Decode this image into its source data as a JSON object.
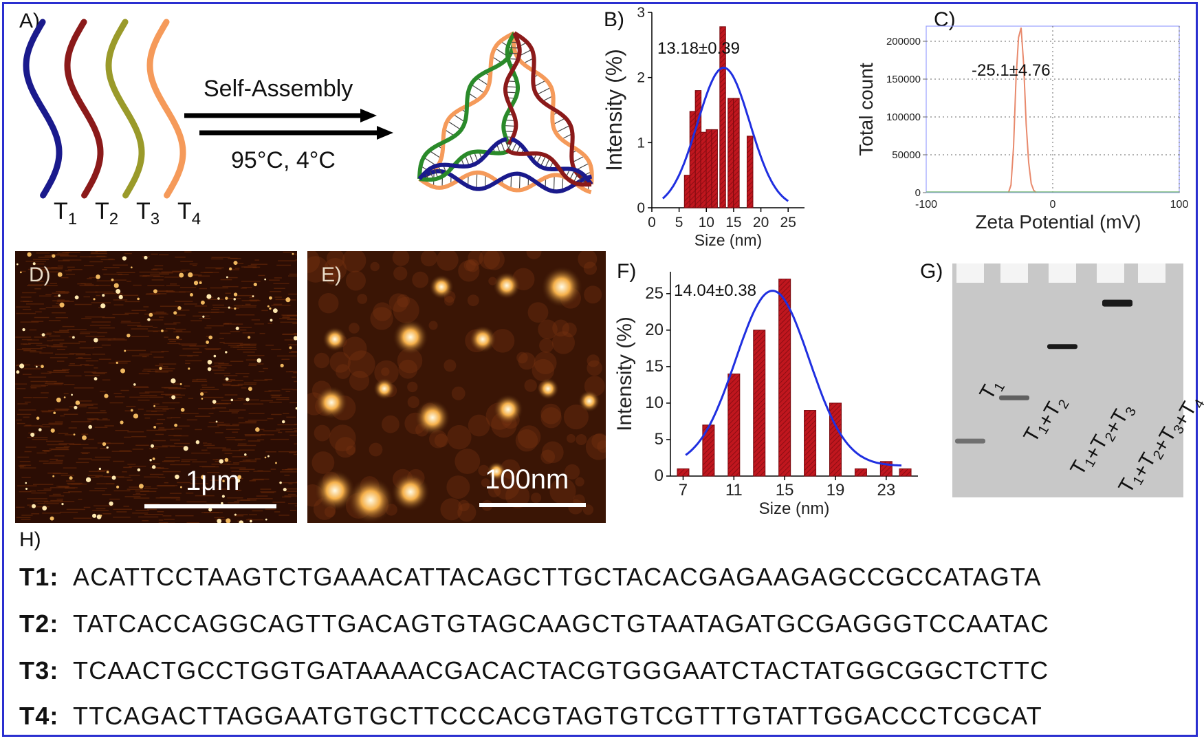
{
  "panels": {
    "A": {
      "label": "A)",
      "strands": [
        "T1",
        "T2",
        "T3",
        "T4"
      ],
      "strand_colors": [
        "#1a1a8c",
        "#8b1a1a",
        "#9a9a2a",
        "#f59a5a"
      ],
      "arrow_top_text": "Self-Assembly",
      "arrow_bottom_text": "95°C, 4°C"
    },
    "B": {
      "label": "B)",
      "annotation": "13.18±0.39"
    },
    "C": {
      "label": "C)",
      "annotation": "-25.1±4.76"
    },
    "D": {
      "label": "D)",
      "scale_bar": "1μm"
    },
    "E": {
      "label": "E)",
      "scale_bar": "100nm"
    },
    "F": {
      "label": "F)",
      "annotation": "14.04±0.38"
    },
    "G": {
      "label": "G)",
      "lanes": [
        "T1",
        "T1+T2",
        "T1+T2+T3",
        "T1+T2+T3+T4"
      ],
      "band_rel_positions": [
        0.31,
        0.48,
        0.67,
        0.86
      ]
    },
    "H": {
      "label": "H)",
      "sequences": [
        {
          "name": "T1:",
          "seq": "ACATTCCTAAGTCTGAAACATTACAGCTTGCTACACGAGAAGAGCCGCCATAGTA"
        },
        {
          "name": "T2:",
          "seq": "TATCACCAGGCAGTTGACAGTGTAGCAAGCTGTAATAGATGCGAGGGTCCAATAC"
        },
        {
          "name": "T3:",
          "seq": "TCAACTGCCTGGTGATAAAACGACACTACGTGGGAATCTACTATGGCGGCTCTTC"
        },
        {
          "name": "T4:",
          "seq": "TTCAGACTTAGGAATGTGCTTCCCACGTAGTGTCGTTTGTATTGGACCCTCGCAT"
        }
      ]
    }
  },
  "chart_data": [
    {
      "id": "B",
      "type": "bar",
      "x": [
        6.5,
        7.5,
        8.5,
        9.5,
        10.5,
        11.5,
        13,
        14.5,
        15.5,
        18
      ],
      "values": [
        0.5,
        1.48,
        1.8,
        1.16,
        1.2,
        1.2,
        2.78,
        1.68,
        1.68,
        1.1
      ],
      "fit": {
        "type": "gaussian",
        "mean": 13.18,
        "sigma": 4.8,
        "amplitude": 2.15
      },
      "xlabel": "Size (nm)",
      "ylabel": "Intensity (%)",
      "xlim": [
        0,
        28
      ],
      "ylim": [
        0,
        3
      ],
      "xticks": [
        0,
        5,
        10,
        15,
        20,
        25
      ],
      "yticks": [
        0,
        1,
        2,
        3
      ]
    },
    {
      "id": "C",
      "type": "line",
      "x": [
        -35,
        -33,
        -31,
        -29,
        -27,
        -25,
        -23,
        -21,
        -19,
        -17,
        -15,
        -13
      ],
      "values": [
        0,
        10000,
        60000,
        150000,
        205000,
        218000,
        170000,
        90000,
        40000,
        12000,
        3000,
        0
      ],
      "xlabel": "Zeta Potential (mV)",
      "ylabel": "Total count",
      "xlim": [
        -100,
        100
      ],
      "ylim": [
        0,
        220000
      ],
      "xticks": [
        -100,
        0,
        100
      ],
      "yticks": [
        0,
        50000,
        100000,
        150000,
        200000
      ],
      "grid": true,
      "color": "#e8896c"
    },
    {
      "id": "F",
      "type": "bar",
      "x": [
        7,
        9,
        11,
        13,
        15,
        17,
        19,
        21,
        23,
        24.5
      ],
      "values": [
        1,
        7,
        14,
        20,
        27,
        9,
        10,
        1,
        2,
        1
      ],
      "fit": {
        "type": "gaussian",
        "mean": 14.04,
        "sigma": 2.9,
        "amplitude": 24
      },
      "xlabel": "Size (nm)",
      "ylabel": "Intensity (%)",
      "xlim": [
        6,
        25.5
      ],
      "ylim": [
        0,
        28
      ],
      "xticks": [
        7,
        11,
        15,
        19,
        23
      ],
      "yticks": [
        0,
        5,
        10,
        15,
        20,
        25
      ]
    }
  ]
}
